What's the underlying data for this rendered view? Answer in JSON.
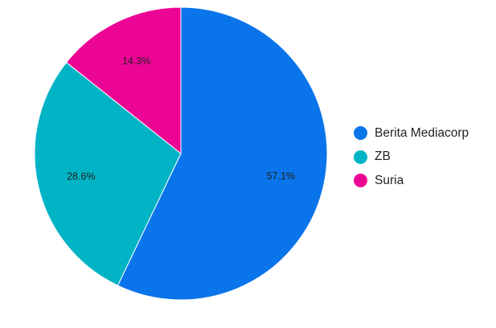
{
  "chart_data": {
    "type": "pie",
    "title": "",
    "categories": [
      "Berita Mediacorp",
      "ZB",
      "Suria"
    ],
    "values": [
      57.1,
      28.6,
      14.3
    ],
    "value_labels": [
      "57.1%",
      "28.6%",
      "14.3%"
    ],
    "colors": [
      "#0a74ea",
      "#00b4c5",
      "#ec0595"
    ],
    "start_angle_deg": 0,
    "direction": "clockwise",
    "legend_position": "right",
    "legend": [
      {
        "label": "Berita Mediacorp",
        "color": "#0a74ea"
      },
      {
        "label": "ZB",
        "color": "#00b4c5"
      },
      {
        "label": "Suria",
        "color": "#ec0595"
      }
    ]
  }
}
